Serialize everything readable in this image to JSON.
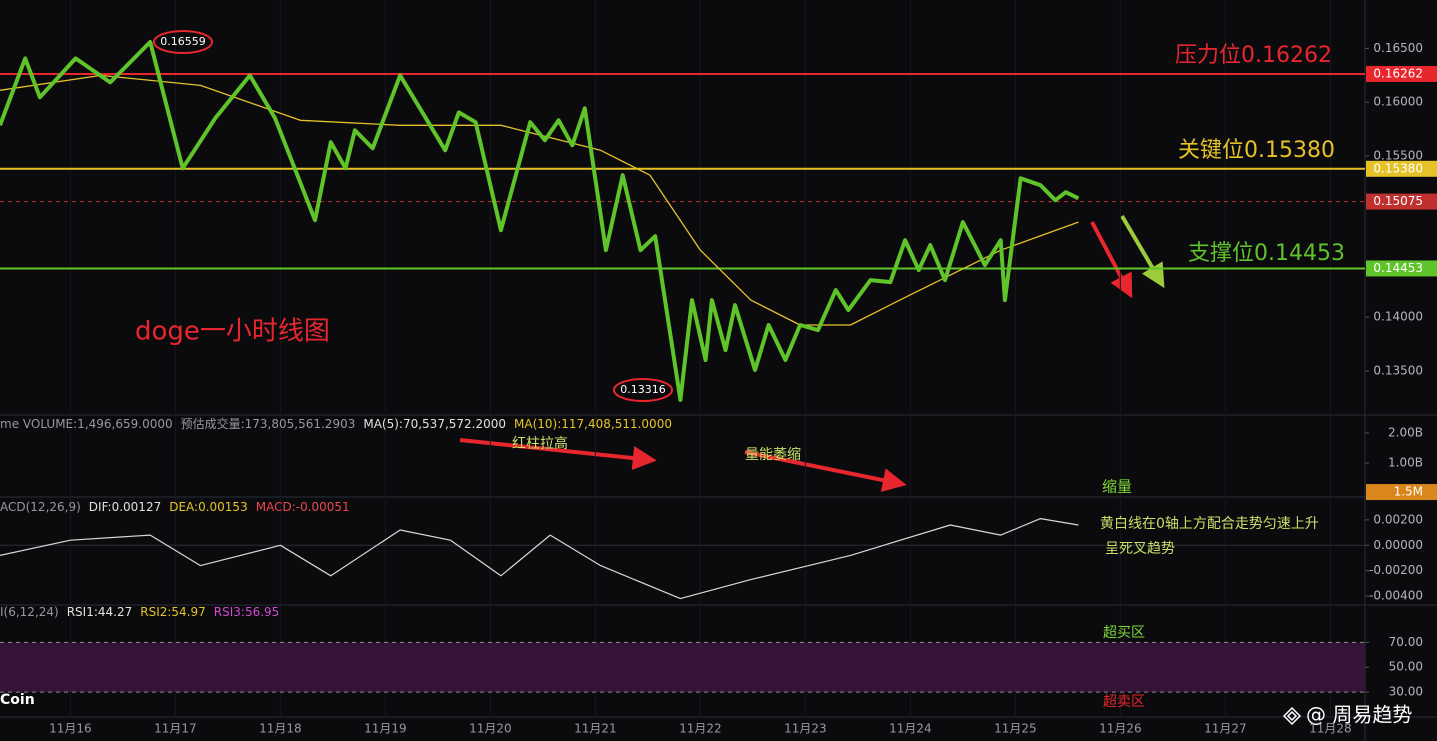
{
  "chart_data": [
    {
      "type": "line",
      "title": "doge一小时线图",
      "title_color": "#e8262e",
      "xlim": [
        15.33,
        28.33
      ],
      "xticks": [
        {
          "value": 16,
          "label": "11月16"
        },
        {
          "value": 17,
          "label": "11月17"
        },
        {
          "value": 18,
          "label": "11月18"
        },
        {
          "value": 19,
          "label": "11月19"
        },
        {
          "value": 20,
          "label": "11月20"
        },
        {
          "value": 21,
          "label": "11月21"
        },
        {
          "value": 22,
          "label": "11月22"
        },
        {
          "value": 23,
          "label": "11月23"
        },
        {
          "value": 24,
          "label": "11月24"
        },
        {
          "value": 25,
          "label": "11月25"
        },
        {
          "value": 26,
          "label": "11月26"
        },
        {
          "value": 27,
          "label": "11月27"
        },
        {
          "value": 28,
          "label": "11月28"
        }
      ],
      "ylim": [
        0.1309,
        0.1695
      ],
      "yticks": [
        {
          "value": 0.165,
          "label": "0.16500"
        },
        {
          "value": 0.16,
          "label": "0.16000"
        },
        {
          "value": 0.155,
          "label": "0.15500"
        },
        {
          "value": 0.14,
          "label": "0.14000"
        },
        {
          "value": 0.135,
          "label": "0.13500"
        }
      ],
      "series": [
        {
          "color": "#e6c229",
          "x": [
            15.33,
            16.29,
            17.24,
            18.19,
            19.14,
            20.1,
            21.05,
            21.52,
            22.0,
            22.48,
            22.95,
            23.43,
            23.9,
            24.38,
            24.86,
            25.6
          ],
          "values": [
            0.1611,
            0.16249,
            0.16156,
            0.15831,
            0.15785,
            0.15785,
            0.15552,
            0.1532,
            0.14623,
            0.14159,
            0.13927,
            0.13927,
            0.14159,
            0.14391,
            0.14623,
            0.14884
          ]
        },
        {
          "color": "#5fc32a",
          "x": [
            15.33,
            15.57,
            15.71,
            16.05,
            16.38,
            16.76,
            17.07,
            17.38,
            17.71,
            17.95,
            18.33,
            18.48,
            18.62,
            18.71,
            18.88,
            19.14,
            19.57,
            19.7,
            19.86,
            20.1,
            20.38,
            20.52,
            20.65,
            20.78,
            20.9,
            21.1,
            21.26,
            21.43,
            21.57,
            21.81,
            21.92,
            22.05,
            22.11,
            22.24,
            22.33,
            22.52,
            22.65,
            22.81,
            22.95,
            23.12,
            23.29,
            23.41,
            23.62,
            23.81,
            23.95,
            24.08,
            24.19,
            24.33,
            24.5,
            24.71,
            24.86,
            24.9,
            25.05,
            25.24,
            25.38,
            25.48,
            25.6
          ],
          "values": [
            0.15785,
            0.16407,
            0.16045,
            0.16407,
            0.16184,
            0.16559,
            0.15385,
            0.1585,
            0.16249,
            0.1585,
            0.14902,
            0.15627,
            0.15385,
            0.15738,
            0.15571,
            0.16249,
            0.15552,
            0.15905,
            0.15813,
            0.14809,
            0.15813,
            0.15645,
            0.15831,
            0.15599,
            0.15943,
            0.14623,
            0.1532,
            0.14623,
            0.14753,
            0.1323,
            0.14159,
            0.13602,
            0.14159,
            0.13694,
            0.14112,
            0.13509,
            0.13927,
            0.13602,
            0.13927,
            0.1388,
            0.14252,
            0.14066,
            0.14345,
            0.14326,
            0.14716,
            0.14438,
            0.1467,
            0.14345,
            0.14884,
            0.14484,
            0.14716,
            0.14159,
            0.15292,
            0.15227,
            0.15088,
            0.15162,
            0.15106
          ]
        }
      ],
      "levels": [
        {
          "value": 0.16262,
          "label": "0.16262",
          "color": "#e8262e",
          "text": "压力位0.16262"
        },
        {
          "value": 0.1538,
          "label": "0.15380",
          "color": "#e6c229",
          "text": "关键位0.15380"
        },
        {
          "value": 0.15075,
          "label": "0.15075",
          "color": "#c0302f",
          "dashed": true
        },
        {
          "value": 0.14453,
          "label": "0.14453",
          "color": "#5fc32a",
          "text": "支撑位0.14453"
        }
      ],
      "markers": [
        {
          "x": 16.76,
          "value": 0.16559,
          "label": "0.16559"
        },
        {
          "x": 21.62,
          "value": 0.13316,
          "label": "0.13316"
        }
      ]
    },
    {
      "type": "volume",
      "info": [
        {
          "text": "me VOLUME:1,496,659.0000",
          "color": "#9598a1"
        },
        {
          "text": "预估成交量:173,805,561.2903",
          "color": "#9598a1"
        },
        {
          "text": "MA(5):70,537,572.2000",
          "color": "#e0e0e0"
        },
        {
          "text": "MA(10):117,408,511.0000",
          "color": "#e6c229"
        }
      ],
      "ylim": [
        -130000000,
        2600000000
      ],
      "yticks": [
        {
          "value": 2000000000,
          "label": "2.00B"
        },
        {
          "value": 1000000000,
          "label": "1.00B"
        }
      ],
      "current": {
        "value": 1500000,
        "label": "1.5M",
        "color": "#d9861c"
      },
      "annotations": [
        {
          "text": "红柱拉高",
          "color": "#c8e06a"
        },
        {
          "text": "量能萎缩",
          "color": "#c8e06a"
        },
        {
          "text": "缩量",
          "color": "#7fd83a"
        }
      ]
    },
    {
      "type": "macd",
      "info": [
        {
          "text": "ACD(12,26,9)",
          "color": "#9598a1"
        },
        {
          "text": "DIF:0.00127",
          "color": "#e0e0e0"
        },
        {
          "text": "DEA:0.00153",
          "color": "#e6c229"
        },
        {
          "text": "MACD:-0.00051",
          "color": "#e8484b"
        }
      ],
      "ylim": [
        -0.0047,
        0.0038
      ],
      "yticks": [
        {
          "value": 0.002,
          "label": "0.00200"
        },
        {
          "value": 0,
          "label": "0.00000"
        },
        {
          "value": -0.002,
          "label": "-0.00200"
        },
        {
          "value": -0.004,
          "label": "-0.00400"
        }
      ],
      "series": [
        {
          "color": "#d8d8d8",
          "x": [
            15.33,
            16.0,
            16.76,
            17.24,
            18.0,
            18.48,
            19.14,
            19.62,
            20.1,
            20.57,
            21.05,
            21.81,
            22.48,
            23.43,
            24.38,
            24.86,
            25.24,
            25.6
          ],
          "values": [
            -0.0008,
            0.0004,
            0.0008,
            -0.0016,
            0,
            -0.0024,
            0.0012,
            0.0004,
            -0.0024,
            0.0008,
            -0.0016,
            -0.0042,
            -0.0027,
            -0.0008,
            0.0016,
            0.0008,
            0.0021,
            0.0016
          ]
        }
      ],
      "annotations": [
        {
          "text": "黄白线在0轴上方配合走势匀速上升",
          "color": "#c8e06a"
        },
        {
          "text": "呈死叉趋势",
          "color": "#c8e06a"
        }
      ]
    },
    {
      "type": "rsi",
      "info": [
        {
          "text": "I(6,12,24)",
          "color": "#9598a1"
        },
        {
          "text": "RSI1:44.27",
          "color": "#e0e0e0"
        },
        {
          "text": "RSI2:54.97",
          "color": "#e6c229"
        },
        {
          "text": "RSI3:56.95",
          "color": "#d24ad2"
        }
      ],
      "ylim": [
        10,
        100
      ],
      "yticks": [
        {
          "value": 70,
          "label": "70.00"
        },
        {
          "value": 50,
          "label": "50.00"
        },
        {
          "value": 30,
          "label": "30.00"
        }
      ],
      "annotations": [
        {
          "text": "超买区",
          "color": "#7fd83a"
        },
        {
          "text": "超卖区",
          "color": "#e8262e"
        }
      ]
    }
  ],
  "brand": "Coin",
  "signature": "@ 周易趋势"
}
